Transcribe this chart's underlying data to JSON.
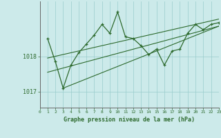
{
  "bg_color": "#cceaea",
  "grid_color": "#99cccc",
  "line_color": "#2d6a2d",
  "marker_color": "#2d6a2d",
  "xlim": [
    0,
    23
  ],
  "ylim": [
    1016.55,
    1019.55
  ],
  "yticks": [
    1017,
    1018
  ],
  "xticks": [
    0,
    1,
    2,
    3,
    4,
    5,
    6,
    7,
    8,
    9,
    10,
    11,
    12,
    13,
    14,
    15,
    16,
    17,
    18,
    19,
    20,
    21,
    22,
    23
  ],
  "series1_x": [
    1,
    2,
    3,
    4,
    5,
    6,
    7,
    8,
    9,
    10,
    11,
    12,
    13,
    14,
    15,
    16,
    17,
    18,
    19,
    20,
    21,
    22,
    23
  ],
  "series1_y": [
    1018.5,
    1017.85,
    1017.1,
    1017.75,
    1018.1,
    1018.35,
    1018.6,
    1018.9,
    1018.65,
    1019.25,
    1018.55,
    1018.5,
    1018.3,
    1018.05,
    1018.2,
    1017.75,
    1018.15,
    1018.2,
    1018.65,
    1018.9,
    1018.75,
    1018.9,
    1018.95
  ],
  "trend1_x": [
    1,
    23
  ],
  "trend1_y": [
    1017.95,
    1019.05
  ],
  "trend2_x": [
    1,
    23
  ],
  "trend2_y": [
    1017.55,
    1018.85
  ],
  "trend3_x": [
    3,
    23
  ],
  "trend3_y": [
    1017.1,
    1018.85
  ],
  "xlabel": "Graphe pression niveau de la mer (hPa)",
  "font_color": "#2d6a2d",
  "ylabel_left_1017": 1017,
  "ylabel_left_1018": 1018
}
